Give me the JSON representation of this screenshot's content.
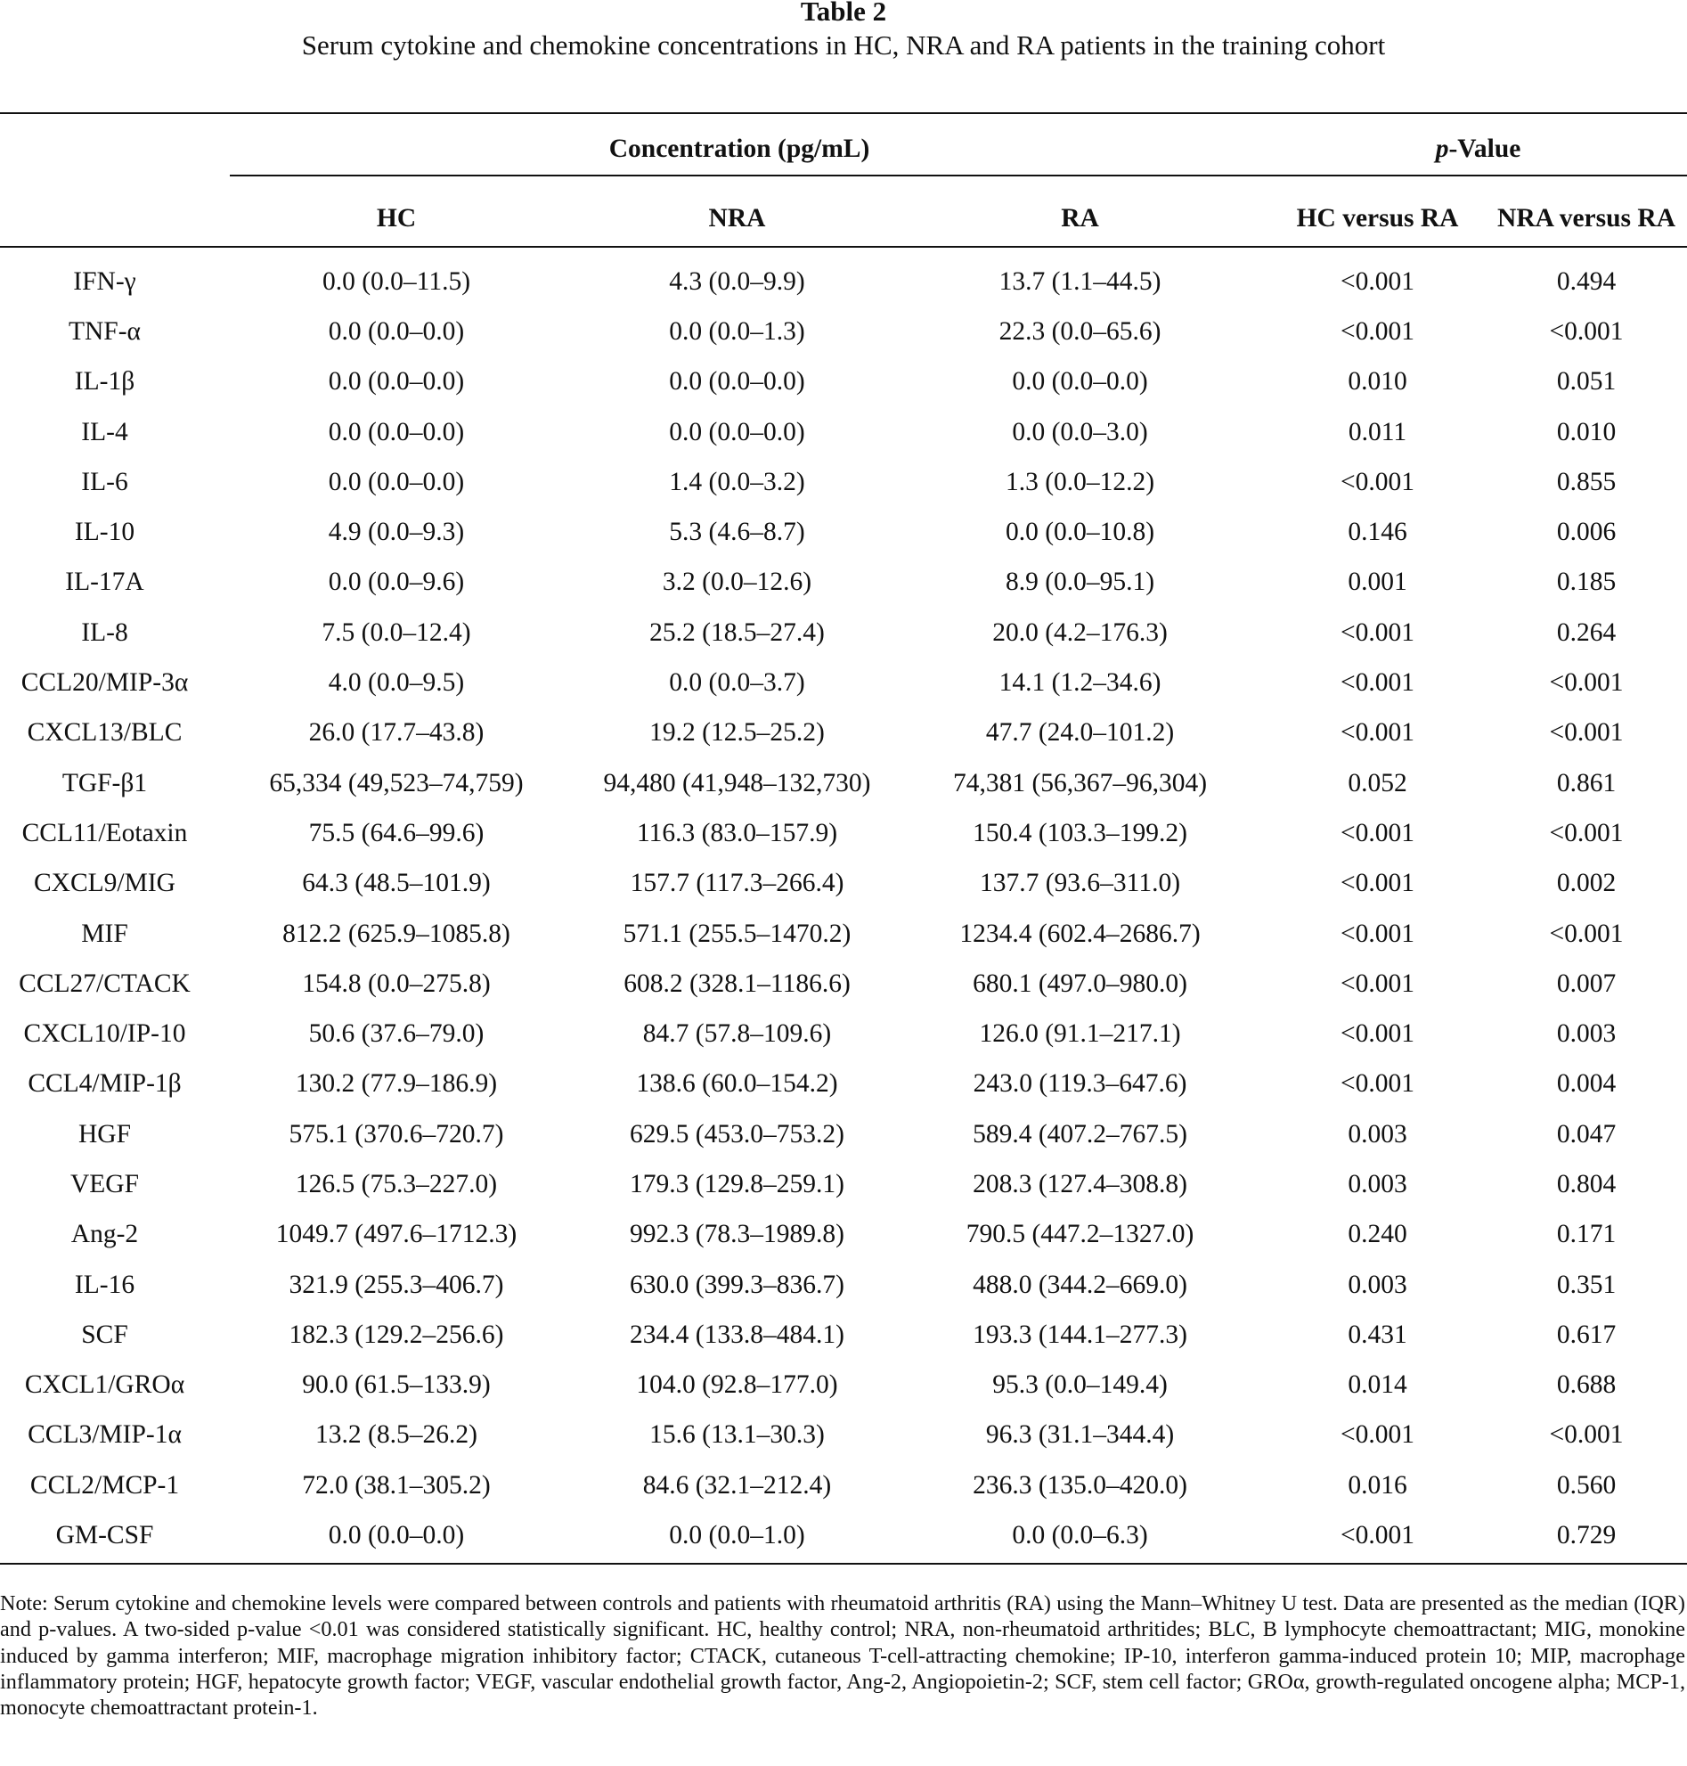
{
  "table_number": "Table 2",
  "caption": "Serum cytokine and chemokine concentrations in HC, NRA and RA patients in the training cohort",
  "headers": {
    "concentration_group": "Concentration (pg/mL)",
    "pvalue_group_italic": "p",
    "pvalue_group_rest": "-Value",
    "columns": [
      "HC",
      "NRA",
      "RA",
      "HC versus RA",
      "NRA versus RA"
    ]
  },
  "rows": [
    [
      "IFN-γ",
      "0.0 (0.0–11.5)",
      "4.3 (0.0–9.9)",
      "13.7 (1.1–44.5)",
      "<0.001",
      "0.494"
    ],
    [
      "TNF-α",
      "0.0 (0.0–0.0)",
      "0.0 (0.0–1.3)",
      "22.3 (0.0–65.6)",
      "<0.001",
      "<0.001"
    ],
    [
      "IL-1β",
      "0.0 (0.0–0.0)",
      "0.0 (0.0–0.0)",
      "0.0 (0.0–0.0)",
      "0.010",
      "0.051"
    ],
    [
      "IL-4",
      "0.0 (0.0–0.0)",
      "0.0 (0.0–0.0)",
      "0.0 (0.0–3.0)",
      "0.011",
      "0.010"
    ],
    [
      "IL-6",
      "0.0 (0.0–0.0)",
      "1.4 (0.0–3.2)",
      "1.3 (0.0–12.2)",
      "<0.001",
      "0.855"
    ],
    [
      "IL-10",
      "4.9 (0.0–9.3)",
      "5.3 (4.6–8.7)",
      "0.0 (0.0–10.8)",
      "0.146",
      "0.006"
    ],
    [
      "IL-17A",
      "0.0 (0.0–9.6)",
      "3.2 (0.0–12.6)",
      "8.9 (0.0–95.1)",
      "0.001",
      "0.185"
    ],
    [
      "IL-8",
      "7.5 (0.0–12.4)",
      "25.2 (18.5–27.4)",
      "20.0 (4.2–176.3)",
      "<0.001",
      "0.264"
    ],
    [
      "CCL20/MIP-3α",
      "4.0 (0.0–9.5)",
      "0.0 (0.0–3.7)",
      "14.1 (1.2–34.6)",
      "<0.001",
      "<0.001"
    ],
    [
      "CXCL13/BLC",
      "26.0 (17.7–43.8)",
      "19.2 (12.5–25.2)",
      "47.7 (24.0–101.2)",
      "<0.001",
      "<0.001"
    ],
    [
      "TGF-β1",
      "65,334 (49,523–74,759)",
      "94,480 (41,948–132,730)",
      "74,381 (56,367–96,304)",
      "0.052",
      "0.861"
    ],
    [
      "CCL11/Eotaxin",
      "75.5 (64.6–99.6)",
      "116.3 (83.0–157.9)",
      "150.4 (103.3–199.2)",
      "<0.001",
      "<0.001"
    ],
    [
      "CXCL9/MIG",
      "64.3 (48.5–101.9)",
      "157.7 (117.3–266.4)",
      "137.7 (93.6–311.0)",
      "<0.001",
      "0.002"
    ],
    [
      "MIF",
      "812.2 (625.9–1085.8)",
      "571.1 (255.5–1470.2)",
      "1234.4 (602.4–2686.7)",
      "<0.001",
      "<0.001"
    ],
    [
      "CCL27/CTACK",
      "154.8 (0.0–275.8)",
      "608.2 (328.1–1186.6)",
      "680.1 (497.0–980.0)",
      "<0.001",
      "0.007"
    ],
    [
      "CXCL10/IP-10",
      "50.6 (37.6–79.0)",
      "84.7 (57.8–109.6)",
      "126.0 (91.1–217.1)",
      "<0.001",
      "0.003"
    ],
    [
      "CCL4/MIP-1β",
      "130.2 (77.9–186.9)",
      "138.6 (60.0–154.2)",
      "243.0 (119.3–647.6)",
      "<0.001",
      "0.004"
    ],
    [
      "HGF",
      "575.1 (370.6–720.7)",
      "629.5 (453.0–753.2)",
      "589.4 (407.2–767.5)",
      "0.003",
      "0.047"
    ],
    [
      "VEGF",
      "126.5 (75.3–227.0)",
      "179.3 (129.8–259.1)",
      "208.3 (127.4–308.8)",
      "0.003",
      "0.804"
    ],
    [
      "Ang-2",
      "1049.7 (497.6–1712.3)",
      "992.3 (78.3–1989.8)",
      "790.5 (447.2–1327.0)",
      "0.240",
      "0.171"
    ],
    [
      "IL-16",
      "321.9 (255.3–406.7)",
      "630.0 (399.3–836.7)",
      "488.0 (344.2–669.0)",
      "0.003",
      "0.351"
    ],
    [
      "SCF",
      "182.3 (129.2–256.6)",
      "234.4 (133.8–484.1)",
      "193.3 (144.1–277.3)",
      "0.431",
      "0.617"
    ],
    [
      "CXCL1/GROα",
      "90.0 (61.5–133.9)",
      "104.0 (92.8–177.0)",
      "95.3 (0.0–149.4)",
      "0.014",
      "0.688"
    ],
    [
      "CCL3/MIP-1α",
      "13.2 (8.5–26.2)",
      "15.6 (13.1–30.3)",
      "96.3 (31.1–344.4)",
      "<0.001",
      "<0.001"
    ],
    [
      "CCL2/MCP-1",
      "72.0 (38.1–305.2)",
      "84.6 (32.1–212.4)",
      "236.3 (135.0–420.0)",
      "0.016",
      "0.560"
    ],
    [
      "GM-CSF",
      "0.0 (0.0–0.0)",
      "0.0 (0.0–1.0)",
      "0.0 (0.0–6.3)",
      "<0.001",
      "0.729"
    ]
  ],
  "note": "Note: Serum cytokine and chemokine levels were compared between controls and patients with rheumatoid arthritis (RA) using the Mann–Whitney U test. Data are presented as the median (IQR) and p-values. A two-sided p-value <0.01 was considered statistically significant. HC, healthy control; NRA, non-rheumatoid arthritides; BLC, B lymphocyte chemoattractant; MIG, monokine induced by gamma interferon; MIF, macrophage migration inhibitory factor; CTACK, cutaneous T-cell-attracting chemokine; IP-10, interferon gamma-induced protein 10; MIP, macrophage inflammatory protein; HGF, hepatocyte growth factor; VEGF, vascular endothelial growth factor, Ang-2, Angiopoietin-2; SCF, stem cell factor; GROα, growth-regulated oncogene alpha; MCP-1, monocyte chemoattractant protein-1."
}
